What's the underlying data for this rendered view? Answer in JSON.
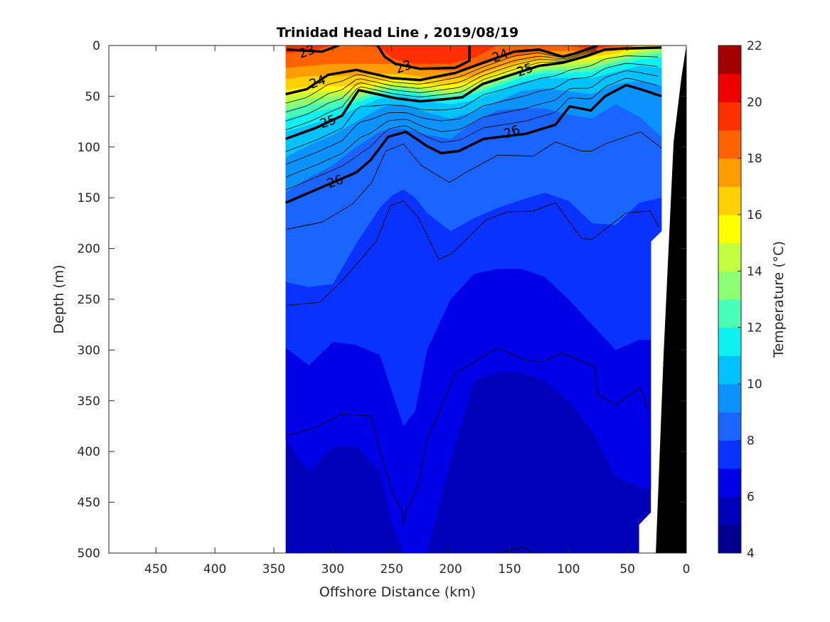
{
  "chart_data": {
    "type": "heatmap",
    "subtype": "filled-contour-section",
    "title": "Trinidad Head Line , 2019/08/19",
    "xlabel": "Offshore Distance (km)",
    "ylabel": "Depth (m)",
    "xlim": [
      490,
      0
    ],
    "ylim": [
      0,
      500
    ],
    "x_reversed": true,
    "y_reversed": true,
    "xticks": [
      450,
      400,
      350,
      300,
      250,
      200,
      150,
      100,
      50,
      0
    ],
    "yticks": [
      0,
      50,
      100,
      150,
      200,
      250,
      300,
      350,
      400,
      450,
      500
    ],
    "colorbar": {
      "label": "Temperature (°C)",
      "range": [
        4,
        22
      ],
      "ticks": [
        4,
        6,
        8,
        10,
        12,
        14,
        16,
        18,
        20,
        22
      ],
      "level_step": 1,
      "colors": [
        "#00008F",
        "#0000B8",
        "#0000E8",
        "#0A32FF",
        "#1A64FF",
        "#0A92FF",
        "#00C2FF",
        "#0DF2F0",
        "#48FFB8",
        "#8CFF74",
        "#C2FF3E",
        "#FFFF00",
        "#FFD000",
        "#FF9C00",
        "#FF6200",
        "#FF3000",
        "#EE0000",
        "#A50000"
      ]
    },
    "deep_fill_temperature": 5,
    "data_extent_outline": [
      [
        340,
        0
      ],
      [
        21,
        0
      ],
      [
        21,
        183
      ],
      [
        30,
        193
      ],
      [
        30,
        460
      ],
      [
        40,
        472
      ],
      [
        40,
        500
      ],
      [
        340,
        500
      ]
    ],
    "bathymetry": [
      [
        0,
        0
      ],
      [
        4.2,
        32
      ],
      [
        10.8,
        95
      ],
      [
        19.3,
        305
      ],
      [
        25.9,
        500
      ],
      [
        0,
        500
      ]
    ],
    "stations_km": [
      340,
      320,
      300,
      280,
      260,
      250,
      240,
      230,
      220,
      200,
      180,
      160,
      140,
      120,
      100,
      80,
      60,
      40,
      21
    ],
    "isotherms": [
      {
        "t": 6,
        "depth": [
          389,
          420,
          395,
          395,
          420,
          470,
          500,
          500,
          500,
          410,
          330,
          322,
          322,
          330,
          350,
          380,
          425,
          435,
          440
        ]
      },
      {
        "t": 7,
        "depth": [
          298,
          315,
          292,
          295,
          305,
          340,
          375,
          360,
          300,
          250,
          225,
          220,
          220,
          228,
          250,
          275,
          300,
          290,
          290
        ]
      },
      {
        "t": 8,
        "depth": [
          233,
          238,
          235,
          195,
          160,
          148,
          142,
          150,
          165,
          183,
          170,
          160,
          152,
          145,
          153,
          175,
          177,
          155,
          150
        ]
      },
      {
        "t": 9,
        "depth": [
          145,
          130,
          118,
          100,
          85,
          82,
          82,
          85,
          88,
          92,
          75,
          64,
          62,
          62,
          68,
          72,
          58,
          70,
          90
        ]
      },
      {
        "t": 10,
        "depth": [
          110,
          98,
          88,
          75,
          62,
          58,
          58,
          62,
          66,
          72,
          65,
          55,
          45,
          42,
          45,
          48,
          38,
          35,
          40
        ]
      },
      {
        "t": 11,
        "depth": [
          85,
          78,
          72,
          62,
          52,
          50,
          50,
          52,
          55,
          58,
          54,
          45,
          36,
          32,
          32,
          32,
          26,
          20,
          22
        ]
      },
      {
        "t": 12,
        "depth": [
          72,
          66,
          62,
          56,
          48,
          46,
          46,
          48,
          50,
          52,
          48,
          40,
          32,
          27,
          27,
          26,
          20,
          14,
          12
        ]
      },
      {
        "t": 13,
        "depth": [
          63,
          58,
          55,
          52,
          45,
          43,
          43,
          45,
          47,
          49,
          45,
          37,
          29,
          24,
          24,
          22,
          16,
          10,
          7
        ]
      },
      {
        "t": 14,
        "depth": [
          57,
          52,
          50,
          48,
          42,
          40,
          40,
          42,
          44,
          46,
          42,
          34,
          26,
          21,
          20,
          18,
          13,
          7,
          4
        ]
      },
      {
        "t": 15,
        "depth": [
          50,
          46,
          45,
          44,
          39,
          37,
          37,
          39,
          41,
          43,
          38,
          30,
          23,
          18,
          16,
          14,
          10,
          4,
          2
        ]
      },
      {
        "t": 16,
        "depth": [
          44,
          40,
          40,
          40,
          35,
          34,
          34,
          36,
          38,
          39,
          35,
          27,
          20,
          15,
          13,
          11,
          8,
          2,
          0
        ]
      },
      {
        "t": 17,
        "depth": [
          33,
          30,
          30,
          30,
          28,
          28,
          28,
          30,
          32,
          33,
          30,
          22,
          16,
          12,
          10,
          8,
          5,
          0,
          0
        ]
      },
      {
        "t": 18,
        "depth": [
          22,
          20,
          18,
          18,
          18,
          18,
          20,
          22,
          24,
          25,
          22,
          14,
          10,
          6,
          5,
          6,
          3,
          0,
          0
        ]
      },
      {
        "t": 19,
        "depth": [
          8,
          5,
          0,
          0,
          2,
          12,
          16,
          18,
          18,
          18,
          12,
          0,
          0,
          0,
          0,
          4,
          0,
          0,
          0
        ]
      }
    ],
    "density_contours": [
      {
        "level": "23",
        "major": true,
        "points": [
          [
            339,
            4
          ],
          [
            309,
            6
          ],
          [
            295,
            0
          ]
        ],
        "labels": [
          [
            322,
            6
          ]
        ]
      },
      {
        "level": "23",
        "major": true,
        "points": [
          [
            262,
            0
          ],
          [
            256,
            11
          ],
          [
            247,
            18
          ],
          [
            226,
            23
          ],
          [
            196,
            22
          ],
          [
            184,
            15
          ],
          [
            184,
            0
          ]
        ],
        "labels": [
          [
            240,
            21
          ]
        ]
      },
      {
        "level": "24",
        "major": true,
        "points": [
          [
            340,
            48
          ],
          [
            322,
            43
          ],
          [
            304,
            29
          ],
          [
            280,
            24
          ],
          [
            250,
            32
          ],
          [
            226,
            34
          ],
          [
            196,
            27
          ],
          [
            170,
            16
          ],
          [
            146,
            6
          ],
          [
            125,
            4
          ],
          [
            105,
            11
          ],
          [
            95,
            8
          ],
          [
            75,
            0
          ]
        ],
        "labels": [
          [
            313,
            36
          ],
          [
            158,
            10
          ]
        ]
      },
      {
        "level": "25",
        "major": true,
        "points": [
          [
            340,
            92
          ],
          [
            314,
            81
          ],
          [
            292,
            69
          ],
          [
            278,
            44
          ],
          [
            262,
            48
          ],
          [
            246,
            52
          ],
          [
            226,
            55
          ],
          [
            206,
            53
          ],
          [
            190,
            51
          ],
          [
            173,
            38
          ],
          [
            149,
            29
          ],
          [
            125,
            20
          ],
          [
            105,
            17
          ],
          [
            86,
            11
          ],
          [
            69,
            4
          ],
          [
            53,
            3
          ],
          [
            21,
            2
          ]
        ],
        "labels": [
          [
            304,
            75
          ],
          [
            137,
            24
          ]
        ]
      },
      {
        "level": "26",
        "major": true,
        "points": [
          [
            340,
            155
          ],
          [
            316,
            143
          ],
          [
            280,
            125
          ],
          [
            268,
            113
          ],
          [
            253,
            90
          ],
          [
            238,
            85
          ],
          [
            220,
            99
          ],
          [
            208,
            106
          ],
          [
            193,
            104
          ],
          [
            172,
            92
          ],
          [
            136,
            87
          ],
          [
            111,
            78
          ],
          [
            99,
            60
          ],
          [
            81,
            64
          ],
          [
            69,
            50
          ],
          [
            51,
            39
          ],
          [
            39,
            43
          ],
          [
            21,
            50
          ]
        ],
        "labels": [
          [
            298,
            134
          ],
          [
            148,
            85
          ]
        ]
      },
      {
        "level": "",
        "major": false,
        "points": [
          [
            339,
            181
          ],
          [
            309,
            174
          ],
          [
            283,
            156
          ],
          [
            267,
            135
          ],
          [
            255,
            104
          ],
          [
            240,
            97
          ],
          [
            225,
            118
          ],
          [
            201,
            135
          ],
          [
            187,
            125
          ],
          [
            160,
            108
          ],
          [
            130,
            109
          ],
          [
            111,
            95
          ],
          [
            89,
            104
          ],
          [
            80,
            104
          ],
          [
            69,
            97
          ],
          [
            39,
            85
          ],
          [
            21,
            101
          ]
        ]
      },
      {
        "level": "",
        "major": false,
        "points": [
          [
            339,
            256
          ],
          [
            311,
            253
          ],
          [
            293,
            233
          ],
          [
            263,
            193
          ],
          [
            251,
            158
          ],
          [
            240,
            153
          ],
          [
            227,
            170
          ],
          [
            210,
            211
          ],
          [
            199,
            205
          ],
          [
            170,
            172
          ],
          [
            152,
            164
          ],
          [
            130,
            163
          ],
          [
            111,
            155
          ],
          [
            89,
            190
          ],
          [
            80,
            191
          ],
          [
            51,
            165
          ],
          [
            31,
            163
          ],
          [
            23,
            179
          ]
        ]
      },
      {
        "level": "",
        "major": false,
        "points": [
          [
            339,
            384
          ],
          [
            316,
            377
          ],
          [
            292,
            363
          ],
          [
            268,
            365
          ],
          [
            259,
            403
          ],
          [
            250,
            438
          ],
          [
            241,
            459
          ],
          [
            240,
            472
          ],
          [
            238,
            459
          ],
          [
            229,
            438
          ],
          [
            220,
            389
          ],
          [
            196,
            323
          ],
          [
            160,
            298
          ],
          [
            139,
            309
          ],
          [
            123,
            312
          ],
          [
            105,
            303
          ],
          [
            78,
            316
          ],
          [
            75,
            344
          ],
          [
            60,
            354
          ],
          [
            39,
            337
          ],
          [
            32,
            360
          ]
        ]
      },
      {
        "level": "",
        "major": false,
        "points": [
          [
            160,
            500
          ],
          [
            139,
            494
          ],
          [
            130,
            500
          ]
        ]
      }
    ]
  }
}
